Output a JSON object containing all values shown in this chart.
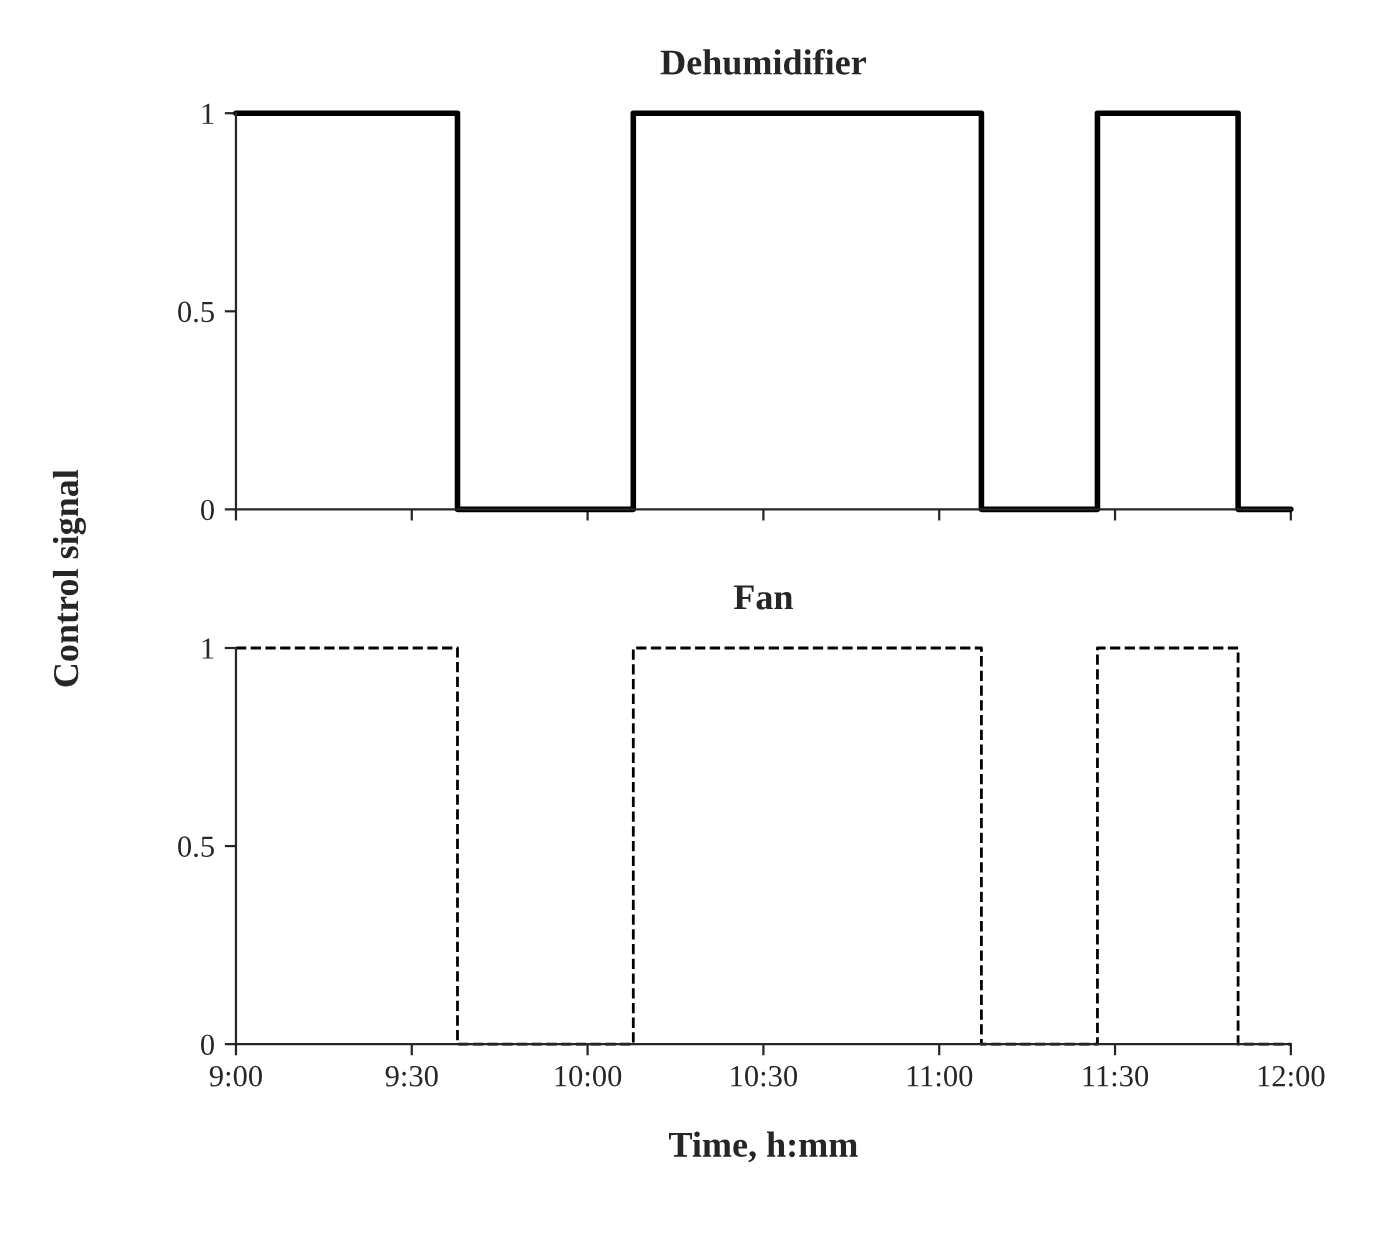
{
  "chart_data": [
    {
      "type": "line",
      "title": "Dehumidifier",
      "ylabel": "Control signal",
      "line_style": "solid",
      "tick_labels": "y",
      "grid": false,
      "legend": false,
      "x": [
        9,
        9.63,
        9.63,
        10.13,
        10.13,
        11.12,
        11.12,
        11.45,
        11.45,
        11.85,
        11.85,
        12
      ],
      "series": [
        {
          "color": "#000000",
          "values": [
            1,
            1,
            0,
            0,
            1,
            1,
            0,
            0,
            1,
            1,
            0,
            0
          ]
        }
      ],
      "xlim": [
        9,
        12
      ],
      "xticks": [
        9,
        9.5,
        10,
        10.5,
        11,
        11.5,
        12
      ],
      "ylim": [
        0,
        1
      ],
      "yticks": [
        0,
        0.5,
        1
      ]
    },
    {
      "type": "line",
      "title": "Fan",
      "xlabel": "Time, h:mm",
      "line_style": "dashed",
      "grid": false,
      "legend": false,
      "x": [
        9,
        9.63,
        9.63,
        10.13,
        10.13,
        11.12,
        11.12,
        11.45,
        11.45,
        11.85,
        11.85,
        12
      ],
      "series": [
        {
          "color": "#000000",
          "values": [
            1,
            1,
            0,
            0,
            1,
            1,
            0,
            0,
            1,
            1,
            0,
            0
          ]
        }
      ],
      "xlim": [
        9,
        12
      ],
      "xticks": [
        {
          "value": 9,
          "label": "9:00"
        },
        {
          "value": 9.5,
          "label": "9:30"
        },
        {
          "value": 10,
          "label": "10:00"
        },
        {
          "value": 10.5,
          "label": "10:30"
        },
        {
          "value": 11,
          "label": "11:00"
        },
        {
          "value": 11.5,
          "label": "11:30"
        },
        {
          "value": 12,
          "label": "12:00"
        }
      ],
      "ylim": [
        0,
        1
      ],
      "yticks": [
        0,
        0.5,
        1
      ]
    }
  ]
}
